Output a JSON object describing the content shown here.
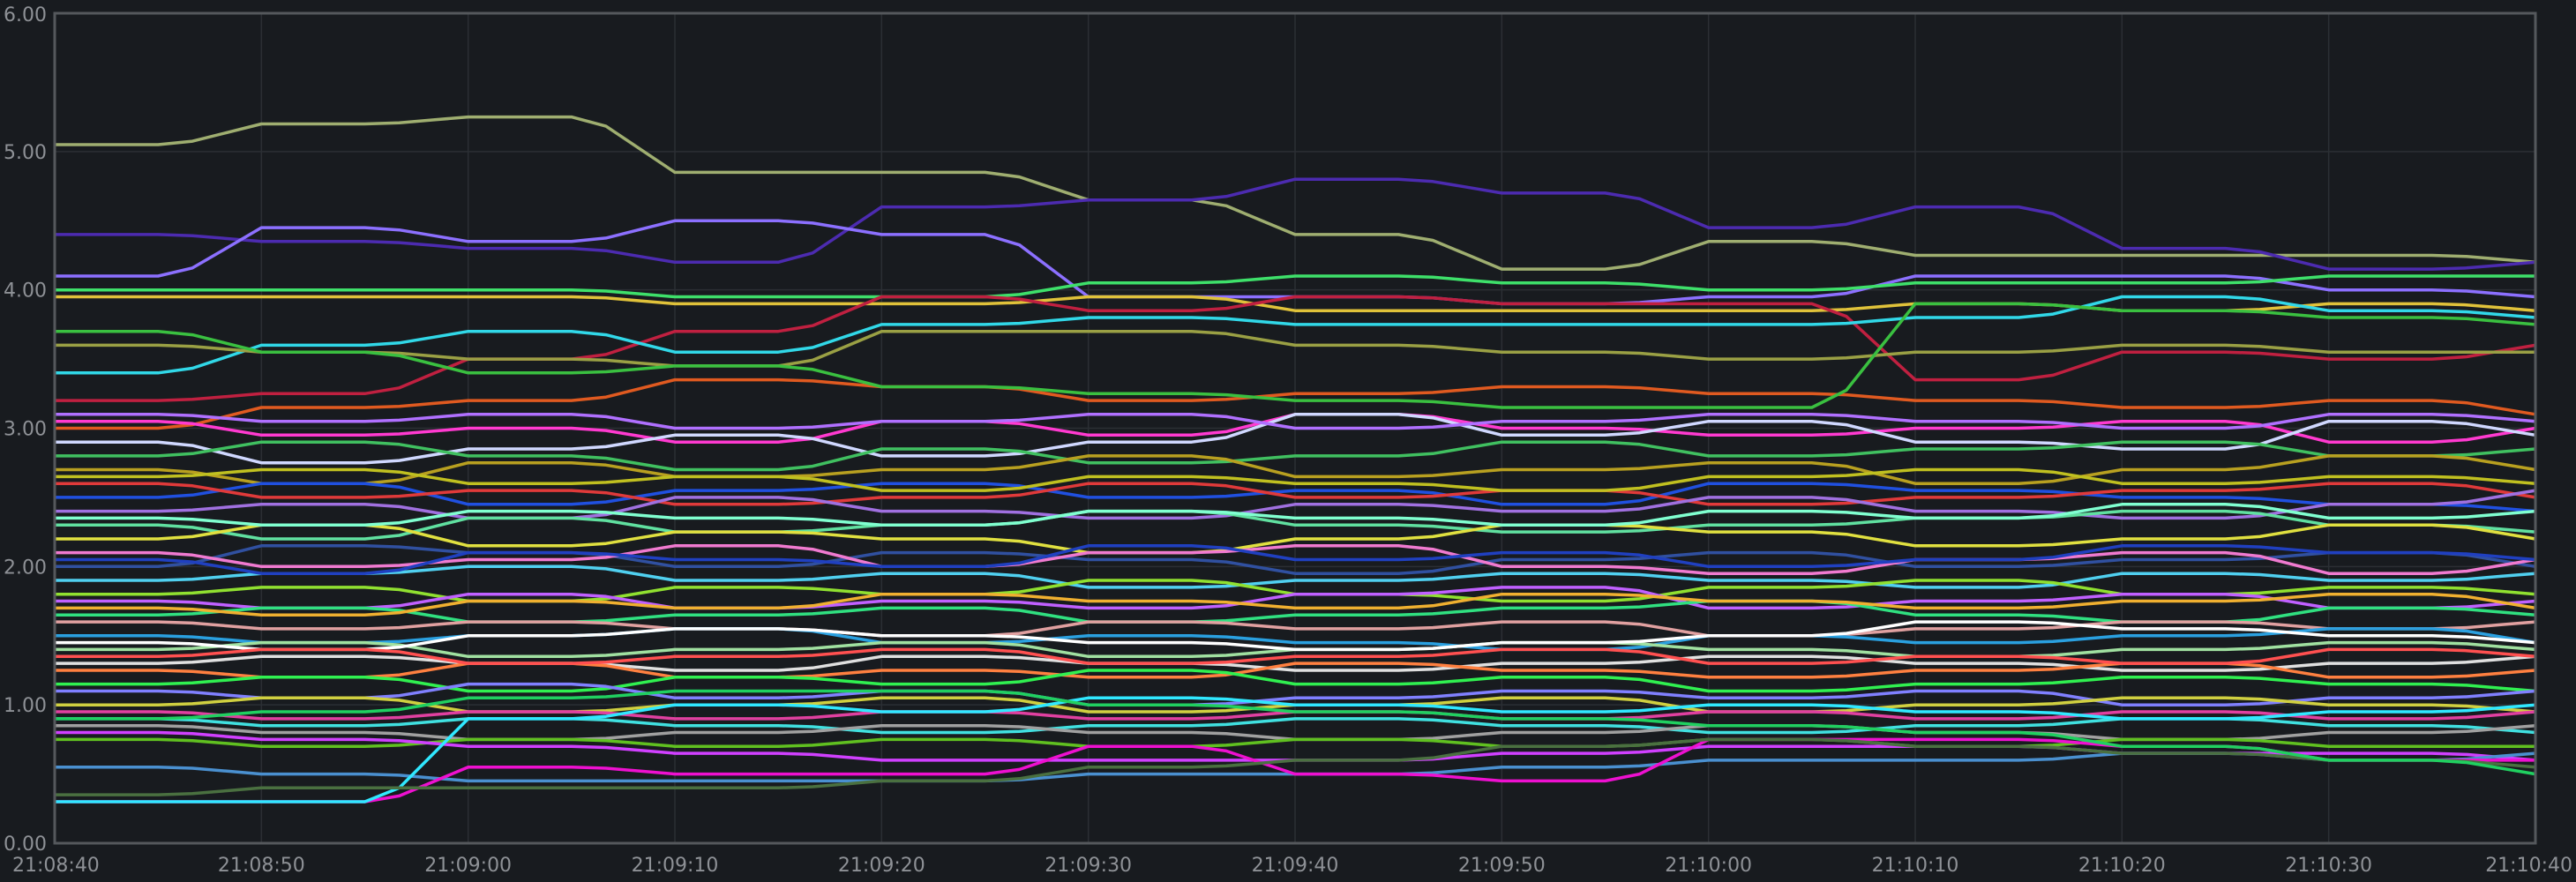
{
  "colors": {
    "background": "#181b1f",
    "grid": "#2b2f34",
    "axis_border": "#55585c",
    "tick_text": "#8e9196"
  },
  "chart_data": {
    "type": "line",
    "title": "",
    "xlabel": "",
    "ylabel": "",
    "x_ticks": [
      "21:08:40",
      "21:08:50",
      "21:09:00",
      "21:09:10",
      "21:09:20",
      "21:09:30",
      "21:09:40",
      "21:09:50",
      "21:10:00",
      "21:10:10",
      "21:10:20",
      "21:10:30",
      "21:10:40"
    ],
    "y_ticks": [
      "0.00",
      "1.00",
      "2.00",
      "3.00",
      "4.00",
      "5.00",
      "6.00"
    ],
    "xlim": [
      "21:08:40",
      "21:10:40"
    ],
    "ylim": [
      0,
      6
    ],
    "grid": true,
    "legend": "none",
    "x": [
      "21:08:40",
      "21:08:50",
      "21:09:00",
      "21:09:10",
      "21:09:20",
      "21:09:30",
      "21:09:40",
      "21:09:50",
      "21:10:00",
      "21:10:10",
      "21:10:20",
      "21:10:30",
      "21:10:40"
    ],
    "series": [
      {
        "color": "#9fae70",
        "values": [
          5.05,
          5.2,
          5.25,
          4.85,
          4.85,
          4.65,
          4.4,
          4.15,
          4.35,
          4.25,
          4.25,
          4.25,
          4.2
        ]
      },
      {
        "color": "#4c2bb0",
        "values": [
          4.4,
          4.35,
          4.3,
          4.2,
          4.6,
          4.65,
          4.8,
          4.7,
          4.45,
          4.6,
          4.3,
          4.15,
          4.2
        ]
      },
      {
        "color": "#8c70ff",
        "values": [
          4.1,
          4.45,
          4.35,
          4.5,
          4.4,
          3.95,
          3.95,
          3.9,
          3.95,
          4.1,
          4.1,
          4.0,
          3.95
        ]
      },
      {
        "color": "#3ee06a",
        "values": [
          4.0,
          4.0,
          4.0,
          3.95,
          3.95,
          4.05,
          4.1,
          4.05,
          4.0,
          4.05,
          4.05,
          4.1,
          4.1
        ]
      },
      {
        "color": "#e0c23a",
        "values": [
          3.95,
          3.95,
          3.95,
          3.9,
          3.9,
          3.95,
          3.85,
          3.85,
          3.85,
          3.9,
          3.85,
          3.9,
          3.85
        ]
      },
      {
        "color": "#c02040",
        "values": [
          3.2,
          3.25,
          3.5,
          3.7,
          3.95,
          3.85,
          3.95,
          3.9,
          3.9,
          3.35,
          3.55,
          3.5,
          3.6
        ]
      },
      {
        "color": "#31d8e8",
        "values": [
          3.4,
          3.6,
          3.7,
          3.55,
          3.75,
          3.8,
          3.75,
          3.75,
          3.75,
          3.8,
          3.95,
          3.85,
          3.8
        ]
      },
      {
        "color": "#9aa044",
        "values": [
          3.6,
          3.55,
          3.5,
          3.45,
          3.7,
          3.7,
          3.6,
          3.55,
          3.5,
          3.55,
          3.6,
          3.55,
          3.55
        ]
      },
      {
        "color": "#e05a20",
        "values": [
          3.0,
          3.15,
          3.2,
          3.35,
          3.3,
          3.2,
          3.25,
          3.3,
          3.25,
          3.2,
          3.15,
          3.2,
          3.1
        ]
      },
      {
        "color": "#3ac040",
        "values": [
          3.7,
          3.55,
          3.4,
          3.45,
          3.3,
          3.25,
          3.2,
          3.15,
          3.15,
          3.9,
          3.85,
          3.8,
          3.75
        ]
      },
      {
        "color": "#ff3ad0",
        "values": [
          3.05,
          2.95,
          3.0,
          2.9,
          3.05,
          2.95,
          3.1,
          3.0,
          2.95,
          3.0,
          3.05,
          2.9,
          3.0
        ]
      },
      {
        "color": "#d0d8ff",
        "values": [
          2.9,
          2.75,
          2.85,
          2.95,
          2.8,
          2.9,
          3.1,
          2.95,
          3.05,
          2.9,
          2.85,
          3.05,
          2.95
        ]
      },
      {
        "color": "#40c060",
        "values": [
          2.8,
          2.9,
          2.8,
          2.7,
          2.85,
          2.75,
          2.8,
          2.9,
          2.8,
          2.85,
          2.9,
          2.8,
          2.85
        ]
      },
      {
        "color": "#b8a020",
        "values": [
          2.7,
          2.6,
          2.75,
          2.65,
          2.7,
          2.8,
          2.65,
          2.7,
          2.75,
          2.6,
          2.7,
          2.8,
          2.7
        ]
      },
      {
        "color": "#2050e0",
        "values": [
          2.5,
          2.6,
          2.45,
          2.55,
          2.6,
          2.5,
          2.55,
          2.45,
          2.6,
          2.55,
          2.5,
          2.45,
          2.4
        ]
      },
      {
        "color": "#e03a3a",
        "values": [
          2.6,
          2.5,
          2.55,
          2.45,
          2.5,
          2.6,
          2.5,
          2.55,
          2.45,
          2.5,
          2.55,
          2.6,
          2.5
        ]
      },
      {
        "color": "#a070e0",
        "values": [
          2.4,
          2.45,
          2.35,
          2.5,
          2.4,
          2.35,
          2.45,
          2.4,
          2.5,
          2.4,
          2.35,
          2.45,
          2.55
        ]
      },
      {
        "color": "#60e0a0",
        "values": [
          2.3,
          2.2,
          2.35,
          2.25,
          2.3,
          2.4,
          2.3,
          2.25,
          2.3,
          2.35,
          2.4,
          2.3,
          2.25
        ]
      },
      {
        "color": "#e0e040",
        "values": [
          2.2,
          2.3,
          2.15,
          2.25,
          2.2,
          2.1,
          2.2,
          2.3,
          2.25,
          2.15,
          2.2,
          2.3,
          2.2
        ]
      },
      {
        "color": "#3050a0",
        "values": [
          2.0,
          2.15,
          2.1,
          2.0,
          2.1,
          2.05,
          1.95,
          2.05,
          2.1,
          2.0,
          2.05,
          2.1,
          2.0
        ]
      },
      {
        "color": "#f07ad0",
        "values": [
          2.1,
          2.0,
          2.05,
          2.15,
          2.0,
          2.1,
          2.15,
          2.0,
          1.95,
          2.05,
          2.1,
          1.95,
          2.05
        ]
      },
      {
        "color": "#50d0f0",
        "values": [
          1.9,
          1.95,
          2.0,
          1.9,
          1.95,
          1.85,
          1.9,
          1.95,
          1.9,
          1.85,
          1.95,
          1.9,
          1.95
        ]
      },
      {
        "color": "#90e030",
        "values": [
          1.8,
          1.85,
          1.75,
          1.85,
          1.8,
          1.9,
          1.8,
          1.75,
          1.85,
          1.9,
          1.8,
          1.85,
          1.8
        ]
      },
      {
        "color": "#c060ff",
        "values": [
          1.75,
          1.7,
          1.8,
          1.7,
          1.75,
          1.7,
          1.8,
          1.85,
          1.7,
          1.75,
          1.8,
          1.7,
          1.75
        ]
      },
      {
        "color": "#30e080",
        "values": [
          1.65,
          1.7,
          1.6,
          1.65,
          1.7,
          1.6,
          1.65,
          1.7,
          1.75,
          1.65,
          1.6,
          1.7,
          1.65
        ]
      },
      {
        "color": "#e0a0a0",
        "values": [
          1.6,
          1.55,
          1.6,
          1.55,
          1.5,
          1.6,
          1.55,
          1.6,
          1.5,
          1.55,
          1.6,
          1.55,
          1.6
        ]
      },
      {
        "color": "#2aa0e0",
        "values": [
          1.5,
          1.45,
          1.5,
          1.55,
          1.45,
          1.5,
          1.45,
          1.4,
          1.5,
          1.45,
          1.5,
          1.55,
          1.45
        ]
      },
      {
        "color": "#a0e0a0",
        "values": [
          1.4,
          1.45,
          1.35,
          1.4,
          1.45,
          1.35,
          1.4,
          1.45,
          1.4,
          1.35,
          1.4,
          1.45,
          1.4
        ]
      },
      {
        "color": "#e0e0e0",
        "values": [
          1.3,
          1.35,
          1.3,
          1.25,
          1.35,
          1.3,
          1.25,
          1.3,
          1.35,
          1.3,
          1.25,
          1.3,
          1.35
        ]
      },
      {
        "color": "#ff8040",
        "values": [
          1.25,
          1.2,
          1.3,
          1.2,
          1.25,
          1.2,
          1.3,
          1.25,
          1.2,
          1.25,
          1.3,
          1.2,
          1.25
        ]
      },
      {
        "color": "#30f050",
        "values": [
          1.15,
          1.2,
          1.1,
          1.2,
          1.15,
          1.25,
          1.15,
          1.2,
          1.1,
          1.15,
          1.2,
          1.15,
          1.1
        ]
      },
      {
        "color": "#8080ff",
        "values": [
          1.1,
          1.05,
          1.15,
          1.05,
          1.1,
          1.0,
          1.05,
          1.1,
          1.05,
          1.1,
          1.0,
          1.05,
          1.1
        ]
      },
      {
        "color": "#d0d040",
        "values": [
          1.0,
          1.05,
          0.95,
          1.0,
          1.05,
          0.95,
          1.0,
          1.05,
          0.95,
          1.0,
          1.05,
          1.0,
          0.95
        ]
      },
      {
        "color": "#e040a0",
        "values": [
          0.95,
          0.9,
          0.95,
          0.9,
          0.95,
          0.9,
          0.95,
          0.9,
          0.95,
          0.9,
          0.95,
          0.9,
          0.95
        ]
      },
      {
        "color": "#40e0e0",
        "values": [
          0.9,
          0.85,
          0.9,
          0.85,
          0.8,
          0.85,
          0.9,
          0.85,
          0.8,
          0.85,
          0.9,
          0.85,
          0.8
        ]
      },
      {
        "color": "#a0a0a0",
        "values": [
          0.85,
          0.8,
          0.75,
          0.8,
          0.85,
          0.8,
          0.75,
          0.8,
          0.85,
          0.8,
          0.75,
          0.8,
          0.85
        ]
      },
      {
        "color": "#60c020",
        "values": [
          0.75,
          0.7,
          0.75,
          0.7,
          0.75,
          0.7,
          0.75,
          0.7,
          0.75,
          0.7,
          0.75,
          0.7,
          0.7
        ]
      },
      {
        "color": "#d040ff",
        "values": [
          0.8,
          0.75,
          0.7,
          0.65,
          0.6,
          0.6,
          0.6,
          0.65,
          0.7,
          0.7,
          0.65,
          0.65,
          0.6
        ]
      },
      {
        "color": "#4a90d0",
        "values": [
          0.55,
          0.5,
          0.45,
          0.45,
          0.45,
          0.5,
          0.5,
          0.55,
          0.6,
          0.6,
          0.65,
          0.6,
          0.65
        ]
      },
      {
        "color": "#ee10d0",
        "values": [
          0.3,
          0.3,
          0.55,
          0.5,
          0.5,
          0.7,
          0.5,
          0.45,
          0.75,
          0.75,
          0.7,
          0.6,
          0.6
        ]
      },
      {
        "color": "#30e8ff",
        "values": [
          0.3,
          0.3,
          0.9,
          1.0,
          0.95,
          1.05,
          1.0,
          0.95,
          1.0,
          0.95,
          0.9,
          0.95,
          1.0
        ]
      },
      {
        "color": "#4a7040",
        "values": [
          0.35,
          0.4,
          0.4,
          0.4,
          0.45,
          0.55,
          0.6,
          0.7,
          0.75,
          0.7,
          0.65,
          0.6,
          0.55
        ]
      },
      {
        "color": "#20d060",
        "values": [
          0.9,
          0.95,
          1.05,
          1.1,
          1.1,
          1.0,
          0.95,
          0.9,
          0.85,
          0.8,
          0.7,
          0.6,
          0.5
        ]
      },
      {
        "color": "#ffffff",
        "values": [
          1.45,
          1.4,
          1.5,
          1.55,
          1.5,
          1.45,
          1.4,
          1.45,
          1.5,
          1.6,
          1.55,
          1.5,
          1.45
        ]
      },
      {
        "color": "#c0c020",
        "values": [
          2.65,
          2.7,
          2.6,
          2.65,
          2.55,
          2.65,
          2.6,
          2.55,
          2.65,
          2.7,
          2.6,
          2.65,
          2.6
        ]
      },
      {
        "color": "#2040c0",
        "values": [
          2.05,
          1.95,
          2.1,
          2.05,
          2.0,
          2.15,
          2.05,
          2.1,
          2.0,
          2.05,
          2.15,
          2.1,
          2.05
        ]
      },
      {
        "color": "#ff5050",
        "values": [
          1.35,
          1.4,
          1.3,
          1.35,
          1.4,
          1.3,
          1.35,
          1.4,
          1.3,
          1.35,
          1.3,
          1.4,
          1.35
        ]
      },
      {
        "color": "#80ffd0",
        "values": [
          2.35,
          2.3,
          2.4,
          2.35,
          2.3,
          2.4,
          2.35,
          2.3,
          2.4,
          2.35,
          2.45,
          2.35,
          2.4
        ]
      },
      {
        "color": "#b070ff",
        "values": [
          3.1,
          3.05,
          3.1,
          3.0,
          3.05,
          3.1,
          3.0,
          3.05,
          3.1,
          3.05,
          3.0,
          3.1,
          3.05
        ]
      },
      {
        "color": "#f0b030",
        "values": [
          1.7,
          1.65,
          1.75,
          1.7,
          1.8,
          1.75,
          1.7,
          1.8,
          1.75,
          1.7,
          1.75,
          1.8,
          1.7
        ]
      }
    ]
  }
}
